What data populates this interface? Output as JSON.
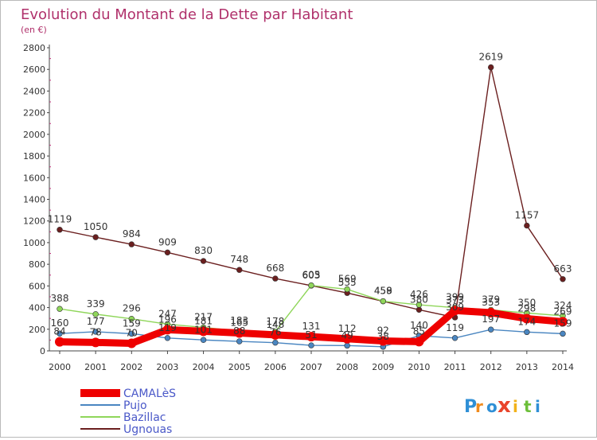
{
  "chart_data": {
    "type": "line",
    "title": "Evolution du Montant de la Dette par Habitant",
    "subtitle": "(en €)",
    "x": [
      2000,
      2001,
      2002,
      2003,
      2004,
      2005,
      2006,
      2007,
      2008,
      2009,
      2010,
      2011,
      2012,
      2013,
      2014
    ],
    "ylim": [
      0,
      2800
    ],
    "yticks": [
      0,
      200,
      400,
      600,
      800,
      1000,
      1200,
      1400,
      1600,
      1800,
      2000,
      2200,
      2400,
      2600,
      2800
    ],
    "grid": false,
    "legend_position": "bottom-left",
    "series": [
      {
        "name": "Ugnouas",
        "color": "#6b1f1f",
        "values": [
          1119,
          1050,
          984,
          909,
          830,
          748,
          668,
          603,
          535,
          458,
          380,
          309,
          2619,
          1157,
          663
        ]
      },
      {
        "name": "Bazillac",
        "color": "#8fd65a",
        "values": [
          388,
          339,
          296,
          247,
          217,
          183,
          178,
          605,
          569,
          459,
          426,
          399,
          379,
          350,
          324
        ]
      },
      {
        "name": "Pujo",
        "color": "#4a86c1",
        "values": [
          160,
          177,
          159,
          119,
          101,
          88,
          76,
          51,
          49,
          38,
          140,
          119,
          197,
          174,
          159
        ]
      },
      {
        "name": "CAMALèS",
        "color": "#ee0000",
        "values": [
          84,
          78,
          70,
          196,
          181,
          165,
          148,
          131,
          112,
          92,
          85,
          373,
          353,
          298,
          269
        ]
      }
    ],
    "data_labels": [
      {
        "series": "Ugnouas",
        "labels": [
          "1119",
          "1050",
          "984",
          "909",
          "830",
          "748",
          "668",
          "603",
          "535",
          "458",
          "380",
          "309",
          "2619",
          "1157",
          "663"
        ]
      },
      {
        "series": "Bazillac",
        "labels": [
          "388",
          "339",
          "296",
          "247",
          "217",
          "183",
          "178",
          "605",
          "569",
          "459",
          "426",
          "399",
          "379",
          "350",
          "324"
        ]
      },
      {
        "series": "Pujo",
        "labels": [
          "160",
          "177",
          "159",
          "119",
          "101",
          "88",
          "76",
          "51",
          "49",
          "38",
          "140",
          "119",
          "197",
          "174",
          "159"
        ]
      },
      {
        "series": "CAMALèS",
        "labels": [
          "84",
          "78",
          "70",
          "196",
          "181",
          "165",
          "148",
          "131",
          "112",
          "92",
          "85",
          "373",
          "353",
          "298",
          "269"
        ]
      }
    ]
  },
  "legend": {
    "items": [
      {
        "label": "CAMALèS",
        "color": "#ee0000"
      },
      {
        "label": "Pujo",
        "color": "#4a86c1"
      },
      {
        "label": "Bazillac",
        "color": "#8fd65a"
      },
      {
        "label": "Ugnouas",
        "color": "#6b1f1f"
      }
    ]
  },
  "brand": {
    "name": "Proxiti"
  }
}
